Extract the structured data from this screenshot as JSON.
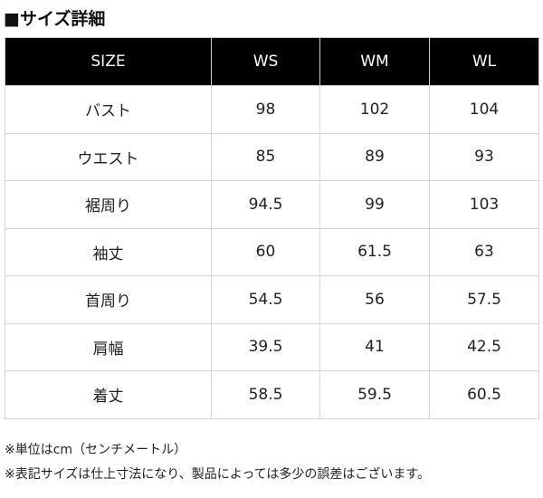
{
  "header": {
    "title": "■サイズ詳細"
  },
  "table": {
    "columns": [
      "SIZE",
      "WS",
      "WM",
      "WL"
    ],
    "rows": [
      [
        "バスト",
        98,
        102,
        104
      ],
      [
        "ウエスト",
        85,
        89,
        93
      ],
      [
        "裾周り",
        94.5,
        99,
        103
      ],
      [
        "袖丈",
        60,
        61.5,
        63
      ],
      [
        "首周り",
        54.5,
        56,
        57.5
      ],
      [
        "肩幅",
        39.5,
        41,
        42.5
      ],
      [
        "着丈",
        58.5,
        59.5,
        60.5
      ]
    ]
  },
  "notes": [
    "※単位はcm（センチメートル）",
    "※表記サイズは仕上寸法になり、製品によっては多少の誤差はございます。"
  ]
}
